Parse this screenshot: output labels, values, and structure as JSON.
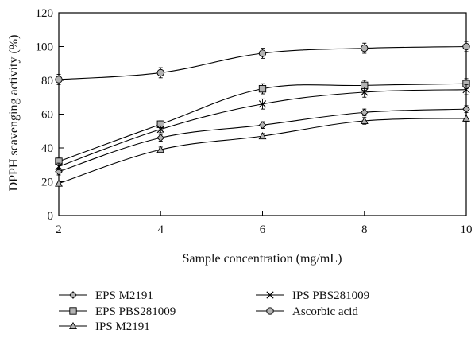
{
  "chart_data": {
    "type": "line",
    "title": "",
    "xlabel": "Sample concentration (mg/mL)",
    "ylabel": "DPPH scavenging activity (%)",
    "xlim": [
      2,
      10
    ],
    "ylim": [
      0,
      120
    ],
    "xticks": [
      "2",
      "4",
      "6",
      "8",
      "10"
    ],
    "yticks": [
      "0",
      "20",
      "40",
      "60",
      "80",
      "100",
      "120"
    ],
    "grid": false,
    "legend_position": "bottom",
    "x": [
      2,
      4,
      6,
      8,
      10
    ],
    "series": [
      {
        "name": "EPS M2191",
        "marker": "diamond",
        "values": [
          26,
          46,
          53.5,
          61,
          63
        ],
        "errors": [
          2,
          2,
          2,
          2,
          2
        ]
      },
      {
        "name": "EPS PBS281009",
        "marker": "square",
        "values": [
          32,
          54,
          75,
          77,
          78
        ],
        "errors": [
          2,
          2,
          3,
          3,
          3
        ]
      },
      {
        "name": "IPS M2191",
        "marker": "triangle",
        "values": [
          19,
          39,
          47,
          56,
          57.5
        ],
        "errors": [
          1.5,
          1.5,
          1.5,
          2,
          2
        ]
      },
      {
        "name": "IPS PBS281009",
        "marker": "cross",
        "values": [
          29,
          51,
          66,
          73,
          74.5
        ],
        "errors": [
          2,
          2,
          3,
          3,
          3
        ]
      },
      {
        "name": "Ascorbic acid",
        "marker": "circle",
        "values": [
          80.5,
          84.5,
          96,
          99,
          100
        ],
        "errors": [
          3,
          3,
          3,
          3,
          3
        ]
      }
    ]
  }
}
